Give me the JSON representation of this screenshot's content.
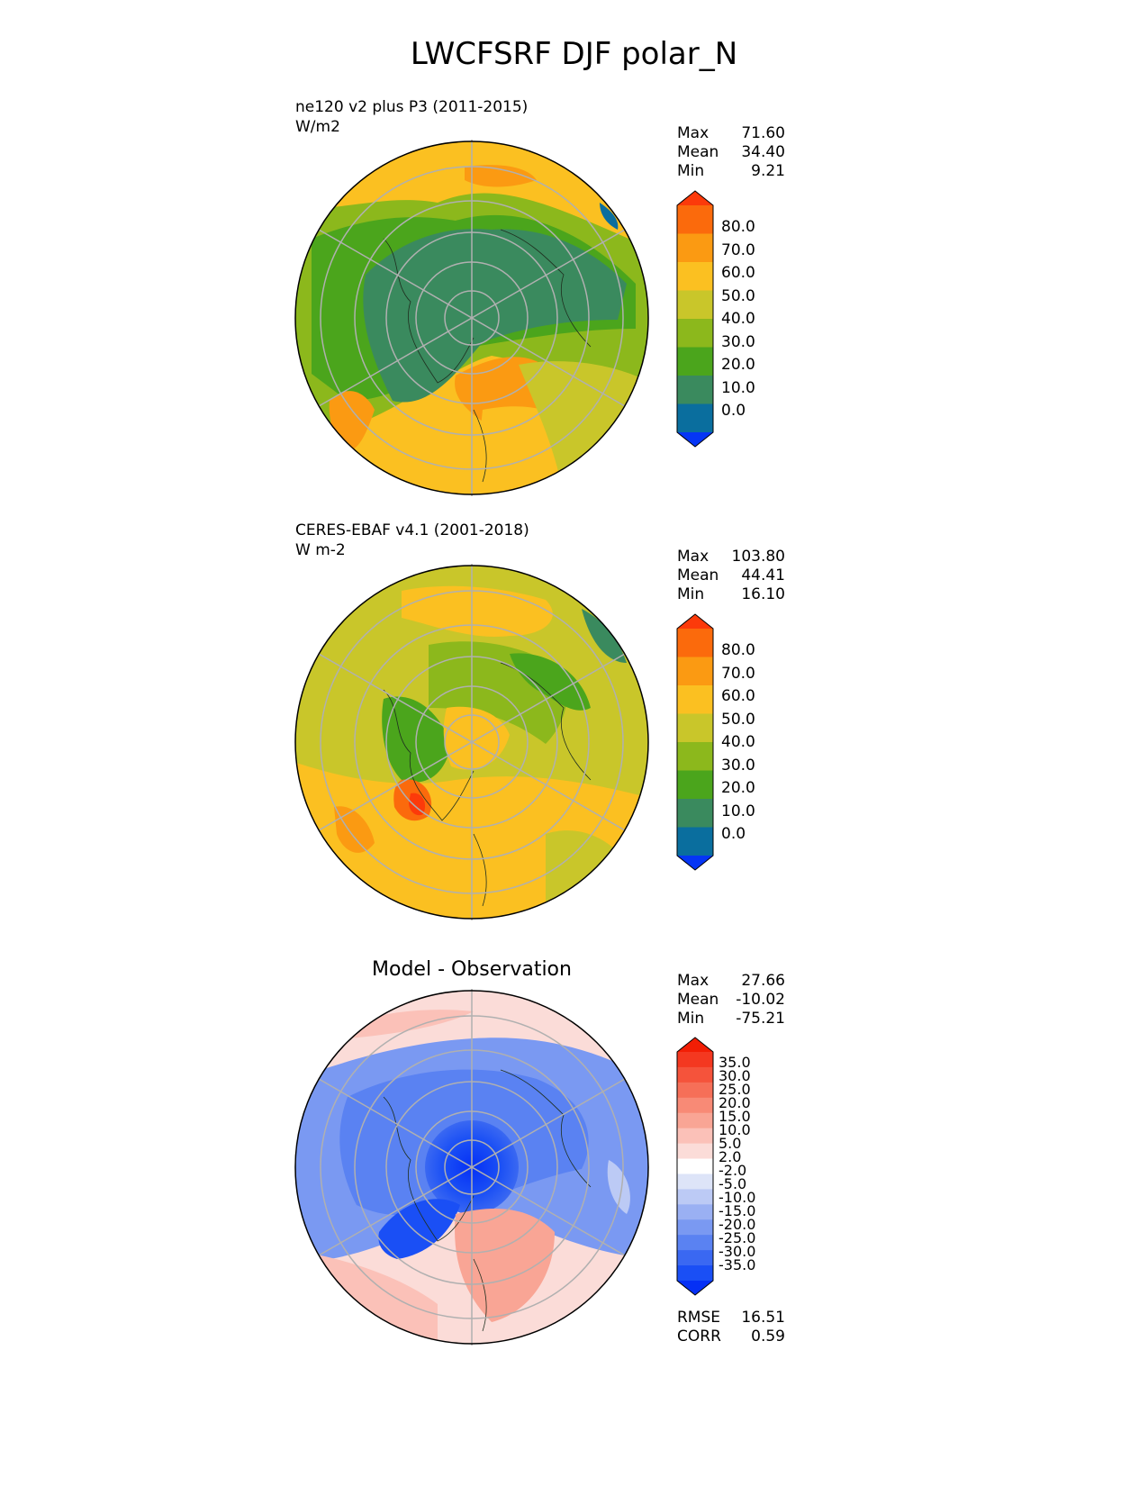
{
  "title": "LWCFSRF DJF polar_N",
  "panels": [
    {
      "name": "model",
      "title_line1": "ne120 v2 plus P3 (2011-2015)",
      "title_line2": "W/m2",
      "stats": [
        {
          "k": "Max",
          "v": "71.60"
        },
        {
          "k": "Mean",
          "v": "34.40"
        },
        {
          "k": "Min",
          "v": "9.21"
        }
      ]
    },
    {
      "name": "obs",
      "title_line1": "CERES-EBAF v4.1 (2001-2018)",
      "title_line2": "W m-2",
      "stats": [
        {
          "k": "Max",
          "v": "103.80"
        },
        {
          "k": "Mean",
          "v": "44.41"
        },
        {
          "k": "Min",
          "v": "16.10"
        }
      ]
    },
    {
      "name": "diff",
      "center_title": "Model - Observation",
      "stats": [
        {
          "k": "Max",
          "v": "27.66"
        },
        {
          "k": "Mean",
          "v": "-10.02"
        },
        {
          "k": "Min",
          "v": "-75.21"
        }
      ],
      "metrics": [
        {
          "k": "RMSE",
          "v": "16.51"
        },
        {
          "k": "CORR",
          "v": "0.59"
        }
      ]
    }
  ],
  "chart_data": [
    {
      "type": "heatmap",
      "projection": "north-polar-stereographic",
      "title": "ne120 v2 plus P3 (2011-2015)",
      "units": "W/m2",
      "stats": {
        "max": 71.6,
        "mean": 34.4,
        "min": 9.21
      },
      "colorbar": {
        "levels": [
          0,
          10,
          20,
          30,
          40,
          50,
          60,
          70,
          80
        ],
        "tick_labels": [
          "80.0",
          "70.0",
          "60.0",
          "50.0",
          "40.0",
          "30.0",
          "20.0",
          "10.0",
          "0.0"
        ],
        "colors": [
          "#0535f5",
          "#0a6e9e",
          "#3a8a5e",
          "#4ba51c",
          "#8cb81c",
          "#c9c62a",
          "#fbc021",
          "#fb9a12",
          "#fb6a0c",
          "#fc3a0a"
        ]
      },
      "grid": true
    },
    {
      "type": "heatmap",
      "projection": "north-polar-stereographic",
      "title": "CERES-EBAF v4.1 (2001-2018)",
      "units": "W m-2",
      "stats": {
        "max": 103.8,
        "mean": 44.41,
        "min": 16.1
      },
      "colorbar": {
        "levels": [
          0,
          10,
          20,
          30,
          40,
          50,
          60,
          70,
          80
        ],
        "tick_labels": [
          "80.0",
          "70.0",
          "60.0",
          "50.0",
          "40.0",
          "30.0",
          "20.0",
          "10.0",
          "0.0"
        ],
        "colors": [
          "#0535f5",
          "#0a6e9e",
          "#3a8a5e",
          "#4ba51c",
          "#8cb81c",
          "#c9c62a",
          "#fbc021",
          "#fb9a12",
          "#fb6a0c",
          "#fc3a0a"
        ]
      },
      "grid": true
    },
    {
      "type": "heatmap",
      "projection": "north-polar-stereographic",
      "title": "Model - Observation",
      "stats": {
        "max": 27.66,
        "mean": -10.02,
        "min": -75.21
      },
      "metrics": {
        "rmse": 16.51,
        "corr": 0.59
      },
      "colorbar": {
        "levels": [
          -35,
          -30,
          -25,
          -20,
          -15,
          -10,
          -5,
          -2,
          2,
          5,
          10,
          15,
          20,
          25,
          30,
          35
        ],
        "tick_labels": [
          "35.0",
          "30.0",
          "25.0",
          "20.0",
          "15.0",
          "10.0",
          "5.0",
          "2.0",
          "-2.0",
          "-5.0",
          "-10.0",
          "-15.0",
          "-20.0",
          "-25.0",
          "-30.0",
          "-35.0"
        ],
        "colors": [
          "#0530f5",
          "#1a4ff5",
          "#3a68f2",
          "#5a82f2",
          "#7a99f2",
          "#9ab0f3",
          "#bccaf5",
          "#dde4f8",
          "#ffffff",
          "#fbdcd8",
          "#fbc1b8",
          "#f9a595",
          "#f88a76",
          "#f66f58",
          "#f5533b",
          "#f43820",
          "#f21e05"
        ]
      },
      "grid": true
    }
  ]
}
